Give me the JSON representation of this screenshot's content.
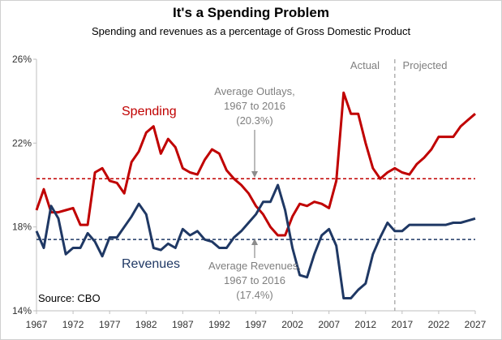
{
  "header": {
    "title": "It's a Spending Problem",
    "subtitle": "Spending and revenues as a percentage of Gross Domestic Product"
  },
  "chart_data": {
    "type": "line",
    "title": "It's a Spending Problem",
    "subtitle": "Spending and revenues as a percentage of Gross Domestic Product",
    "xlabel": "",
    "ylabel": "",
    "xlim": [
      1967,
      2027
    ],
    "ylim": [
      14,
      26
    ],
    "x_ticks": [
      1967,
      1972,
      1977,
      1982,
      1987,
      1992,
      1997,
      2002,
      2007,
      2012,
      2017,
      2022,
      2027
    ],
    "y_ticks": [
      14,
      18,
      22,
      26
    ],
    "y_tick_labels": [
      "14%",
      "18%",
      "22%",
      "26%"
    ],
    "grid": false,
    "series": [
      {
        "name": "Spending",
        "color": "#c00000",
        "x": [
          1967,
          1968,
          1969,
          1970,
          1971,
          1972,
          1973,
          1974,
          1975,
          1976,
          1977,
          1978,
          1979,
          1980,
          1981,
          1982,
          1983,
          1984,
          1985,
          1986,
          1987,
          1988,
          1989,
          1990,
          1991,
          1992,
          1993,
          1994,
          1995,
          1996,
          1997,
          1998,
          1999,
          2000,
          2001,
          2002,
          2003,
          2004,
          2005,
          2006,
          2007,
          2008,
          2009,
          2010,
          2011,
          2012,
          2013,
          2014,
          2015,
          2016,
          2017,
          2018,
          2019,
          2020,
          2021,
          2022,
          2023,
          2024,
          2025,
          2026,
          2027
        ],
        "values": [
          18.8,
          19.8,
          18.7,
          18.7,
          18.8,
          18.9,
          18.1,
          18.1,
          20.6,
          20.8,
          20.2,
          20.1,
          19.6,
          21.1,
          21.6,
          22.5,
          22.8,
          21.5,
          22.2,
          21.8,
          20.8,
          20.6,
          20.5,
          21.2,
          21.7,
          21.5,
          20.7,
          20.3,
          20.0,
          19.6,
          19.0,
          18.6,
          18.0,
          17.6,
          17.6,
          18.5,
          19.1,
          19.0,
          19.2,
          19.1,
          18.9,
          20.2,
          24.4,
          23.4,
          23.4,
          22.0,
          20.8,
          20.3,
          20.6,
          20.8,
          20.6,
          20.5,
          21.0,
          21.3,
          21.7,
          22.3,
          22.3,
          22.3,
          22.8,
          23.1,
          23.4
        ]
      },
      {
        "name": "Revenues",
        "color": "#1f3864",
        "x": [
          1967,
          1968,
          1969,
          1970,
          1971,
          1972,
          1973,
          1974,
          1975,
          1976,
          1977,
          1978,
          1979,
          1980,
          1981,
          1982,
          1983,
          1984,
          1985,
          1986,
          1987,
          1988,
          1989,
          1990,
          1991,
          1992,
          1993,
          1994,
          1995,
          1996,
          1997,
          1998,
          1999,
          2000,
          2001,
          2002,
          2003,
          2004,
          2005,
          2006,
          2007,
          2008,
          2009,
          2010,
          2011,
          2012,
          2013,
          2014,
          2015,
          2016,
          2017,
          2018,
          2019,
          2020,
          2021,
          2022,
          2023,
          2024,
          2025,
          2026,
          2027
        ],
        "values": [
          17.8,
          17.0,
          19.0,
          18.4,
          16.7,
          17.0,
          17.0,
          17.7,
          17.3,
          16.6,
          17.5,
          17.5,
          18.0,
          18.5,
          19.1,
          18.6,
          17.0,
          16.9,
          17.2,
          17.0,
          17.9,
          17.6,
          17.8,
          17.4,
          17.3,
          17.0,
          17.0,
          17.5,
          17.8,
          18.2,
          18.6,
          19.2,
          19.2,
          20.0,
          18.8,
          17.0,
          15.7,
          15.6,
          16.7,
          17.6,
          17.9,
          17.1,
          14.6,
          14.6,
          15.0,
          15.3,
          16.7,
          17.5,
          18.2,
          17.8,
          17.8,
          18.1,
          18.1,
          18.1,
          18.1,
          18.1,
          18.1,
          18.2,
          18.2,
          18.3,
          18.4
        ]
      }
    ],
    "reference_lines": [
      {
        "name": "Average Outlays",
        "value": 20.3,
        "color": "#c00000",
        "style": "dashed"
      },
      {
        "name": "Average Revenues",
        "value": 17.4,
        "color": "#1f3864",
        "style": "dashed"
      }
    ],
    "divider": {
      "x": 2016,
      "style": "dashed",
      "color": "#a6a6a6"
    },
    "annotations": {
      "spending_label": "Spending",
      "revenues_label": "Revenues",
      "outlays_avg": [
        "Average Outlays,",
        "1967 to 2016",
        "(20.3%)"
      ],
      "revenues_avg": [
        "Average Revenues,",
        "1967 to 2016",
        "(17.4%)"
      ],
      "actual": "Actual",
      "projected": "Projected",
      "source": "Source: CBO"
    }
  }
}
